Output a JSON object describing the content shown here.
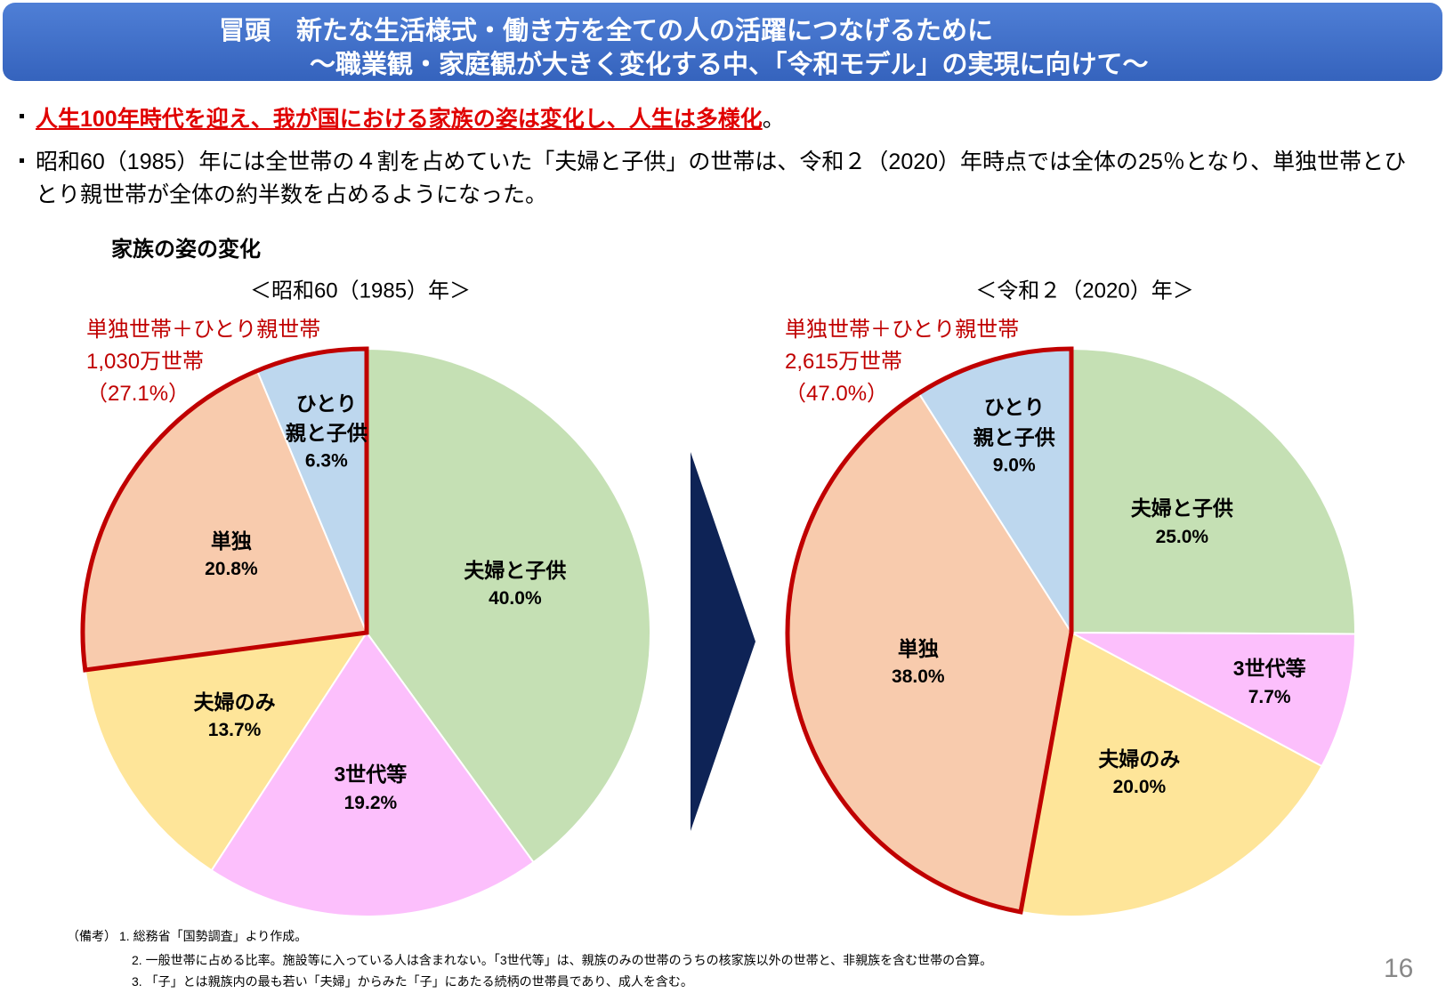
{
  "header": {
    "title_line1": "冒頭　新たな生活様式・働き方を全ての人の活躍につなげるために",
    "title_line2": "～職業観・家庭観が大きく変化する中、「令和モデル」の実現に向けて～"
  },
  "bullets": [
    {
      "emphasis": "人生100年時代を迎え、我が国における家族の姿は変化し、人生は多様化",
      "text": "。"
    },
    {
      "text": "昭和60（1985）年には全世帯の４割を占めていた「夫婦と子供」の世帯は、令和２（2020）年時点では全体の25％となり、単独世帯とひとり親世帯が全体の約半数を占めるようになった。"
    }
  ],
  "section_title": "家族の姿の変化",
  "chart_data": [
    {
      "type": "pie",
      "title": "＜昭和60（1985）年＞",
      "categories": [
        "夫婦と子供",
        "3世代等",
        "夫婦のみ",
        "単独",
        "ひとり\n親と子供"
      ],
      "values": [
        40.0,
        19.2,
        13.7,
        20.8,
        6.3
      ],
      "value_labels": [
        "40.0%",
        "19.2%",
        "13.7%",
        "20.8%",
        "6.3%"
      ],
      "colors": [
        "#c5e0b4",
        "#fcbffc",
        "#fee599",
        "#f8cbad",
        "#bdd7ee"
      ],
      "annotation": [
        "単独世帯＋ひとり親世帯",
        "1,030万世帯",
        "（27.1%）"
      ]
    },
    {
      "type": "pie",
      "title": "＜令和２（2020）年＞",
      "categories": [
        "夫婦と子供",
        "3世代等",
        "夫婦のみ",
        "単独",
        "ひとり\n親と子供"
      ],
      "values": [
        25.0,
        7.7,
        20.0,
        38.0,
        9.0
      ],
      "value_labels": [
        "25.0%",
        "7.7%",
        "20.0%",
        "38.0%",
        "9.0%"
      ],
      "colors": [
        "#c5e0b4",
        "#fcbffc",
        "#fee599",
        "#f8cbad",
        "#bdd7ee"
      ],
      "annotation": [
        "単独世帯＋ひとり親世帯",
        "2,615万世帯",
        "（47.0%）"
      ]
    }
  ],
  "notes": {
    "label": "（備考）",
    "items": [
      "1. 総務省「国勢調査」より作成。",
      "2. 一般世帯に占める比率。施設等に入っている人は含まれない。「3世代等」は、親族のみの世帯のうちの核家族以外の世帯と、非親族を含む世帯の合算。",
      "3. 「子」とは親族内の最も若い「夫婦」からみた「子」にあたる続柄の世帯員であり、成人を含む。"
    ]
  },
  "page_number": "16"
}
